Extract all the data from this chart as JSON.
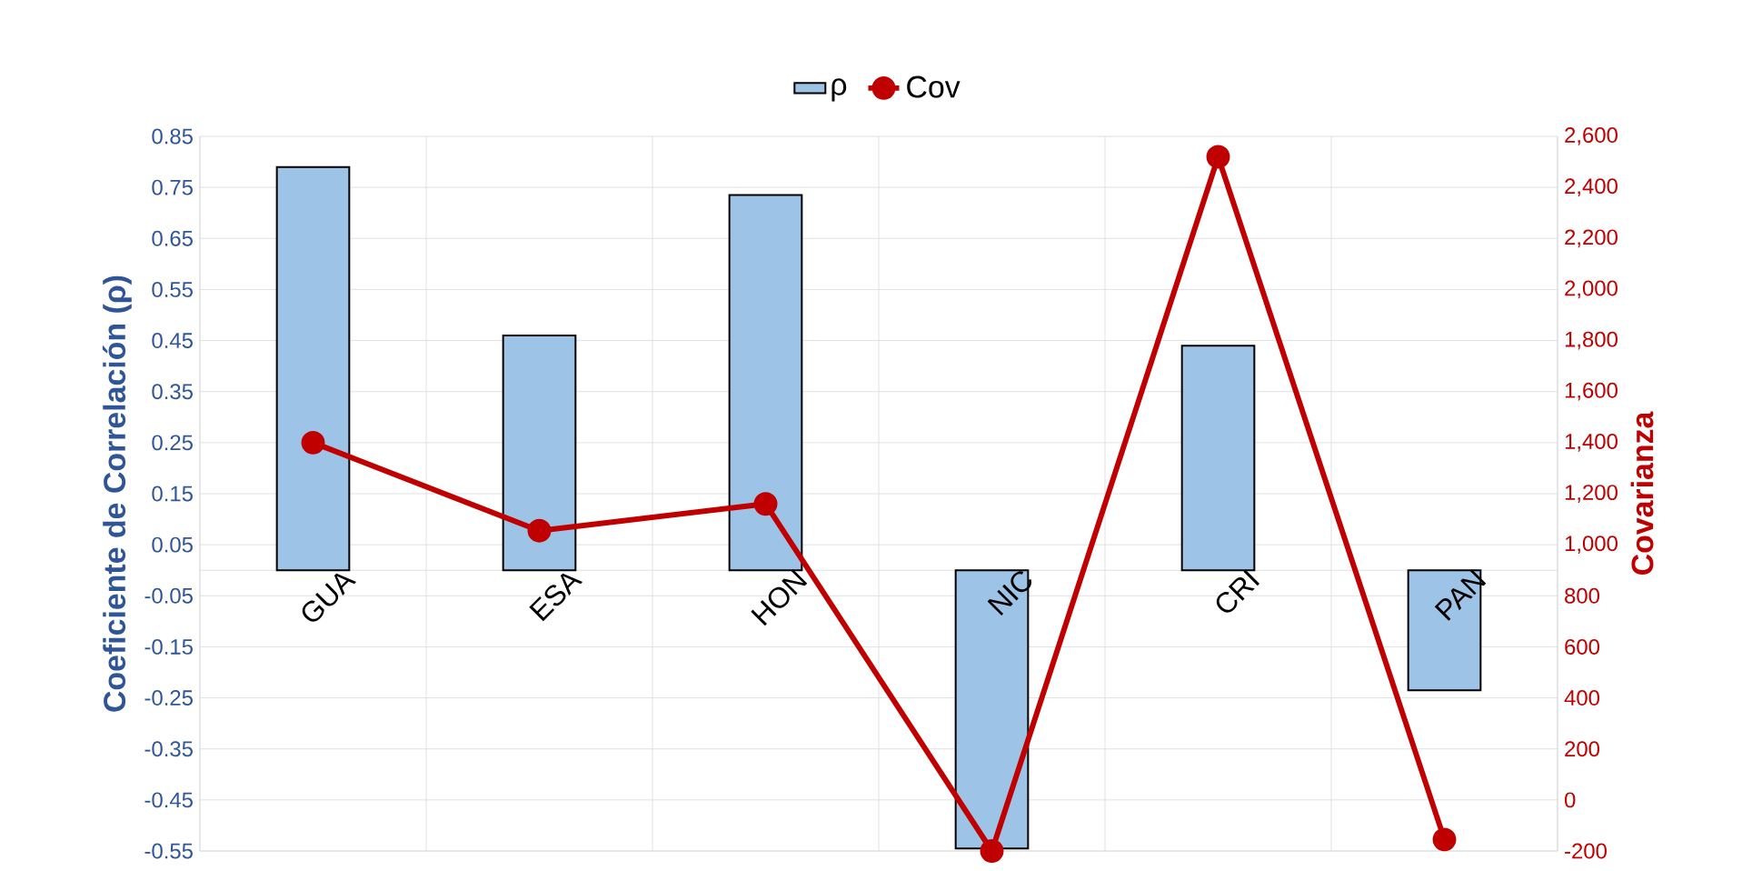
{
  "chart_data": {
    "type": "bar",
    "categories": [
      "GUA",
      "ESA",
      "HON",
      "NIC",
      "CRI",
      "PAN"
    ],
    "series": [
      {
        "name": "ρ",
        "color": "#9dc3e6",
        "values": [
          0.79,
          0.46,
          0.735,
          -0.545,
          0.44,
          -0.235
        ]
      },
      {
        "name": "Cov",
        "type": "line",
        "axis": "y2",
        "color": "#c00000",
        "values": [
          1400,
          1055,
          1160,
          -200,
          2520,
          -155
        ]
      }
    ],
    "ylim": [
      -0.55,
      0.85
    ],
    "yticks": [
      -0.55,
      -0.45,
      -0.35,
      -0.25,
      -0.15,
      -0.05,
      0.05,
      0.15,
      0.25,
      0.35,
      0.45,
      0.55,
      0.65,
      0.75,
      0.85
    ],
    "y2lim": [
      -200,
      2600
    ],
    "y2ticks": [
      {
        "value": -200,
        "label": "-200"
      },
      {
        "value": 0,
        "label": "0"
      },
      {
        "value": 200,
        "label": "200"
      },
      {
        "value": 400,
        "label": "400"
      },
      {
        "value": 600,
        "label": "600"
      },
      {
        "value": 800,
        "label": "800"
      },
      {
        "value": 1000,
        "label": "1,000"
      },
      {
        "value": 1200,
        "label": "1,200"
      },
      {
        "value": 1400,
        "label": "1,400"
      },
      {
        "value": 1600,
        "label": "1,600"
      },
      {
        "value": 1800,
        "label": "1,800"
      },
      {
        "value": 2000,
        "label": "2,000"
      },
      {
        "value": 2200,
        "label": "2,200"
      },
      {
        "value": 2400,
        "label": "2,400"
      },
      {
        "value": 2600,
        "label": "2,600"
      }
    ],
    "ylabel": "Coeficiente de Correlación (ρ)",
    "y2label": "Covarianza",
    "grid": true,
    "legend": "top",
    "marker": "circle"
  }
}
